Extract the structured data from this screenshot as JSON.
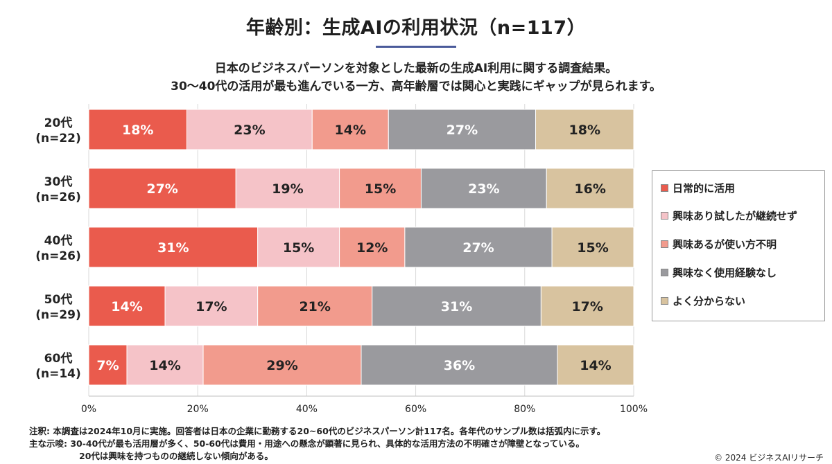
{
  "title": "年齢別：生成AIの利用状況（n=117）",
  "subtitle": [
    "日本のビジネスパーソンを対象とした最新の生成AI利用に関する調査結果。",
    "30〜40代の活用が最も進んでいる一方、高年齢層では関心と実践にギャップが見られます。"
  ],
  "chart_data": {
    "type": "bar",
    "orientation": "horizontal",
    "stacked": "100%",
    "categories": [
      [
        "20代",
        "(n=22)"
      ],
      [
        "30代",
        "(n=26)"
      ],
      [
        "40代",
        "(n=26)"
      ],
      [
        "50代",
        "(n=29)"
      ],
      [
        "60代",
        "(n=14)"
      ]
    ],
    "series": [
      {
        "name": "日常的に活用",
        "color": "#ea5b4d",
        "values": [
          18,
          27,
          31,
          14,
          7
        ]
      },
      {
        "name": "興味あり試したが継続せず",
        "color": "#f5c3c8",
        "values": [
          23,
          19,
          15,
          17,
          14
        ]
      },
      {
        "name": "興味あるが使い方不明",
        "color": "#f29b8d",
        "values": [
          14,
          15,
          12,
          21,
          29
        ]
      },
      {
        "name": "興味なく使用経験なし",
        "color": "#9a9a9e",
        "values": [
          27,
          23,
          27,
          31,
          36
        ]
      },
      {
        "name": "よく分からない",
        "color": "#d8c39f",
        "values": [
          18,
          16,
          15,
          17,
          14
        ]
      }
    ],
    "data_labels": [
      [
        "18%",
        "27%",
        "31%",
        "14%",
        "7%"
      ],
      [
        "23%",
        "19%",
        "15%",
        "17%",
        "14%"
      ],
      [
        "14%",
        "15%",
        "12%",
        "21%",
        "29%"
      ],
      [
        "27%",
        "23%",
        "27%",
        "31%",
        "36%"
      ],
      [
        "18%",
        "16%",
        "15%",
        "17%",
        "14%"
      ]
    ],
    "label_colors": [
      "#ffffff",
      "#222222",
      "#222222",
      "#ffffff",
      "#222222"
    ],
    "x_ticks": [
      "0%",
      "20%",
      "40%",
      "60%",
      "80%",
      "100%"
    ],
    "xlim": [
      0,
      100
    ],
    "grid": "vertical",
    "grid_color": "#d9d9d9",
    "legend_position": "right"
  },
  "footnotes": {
    "note": "注釈: 本調査は2024年10月に実施。回答者は日本の企業に勤務する20~60代のビジネスパーソン計117名。各年代のサンプル数は括弧内に示す。",
    "finding_1": "主な示唆: 30-40代が最も活用層が多く、50-60代は費用・用途への懸念が顕著に見られ、具体的な活用方法の不明確さが障壁となっている。",
    "finding_2": "20代は興味を持つものの継続しない傾向がある。",
    "copyright": "© 2024 ビジネスAIリサーチ"
  }
}
